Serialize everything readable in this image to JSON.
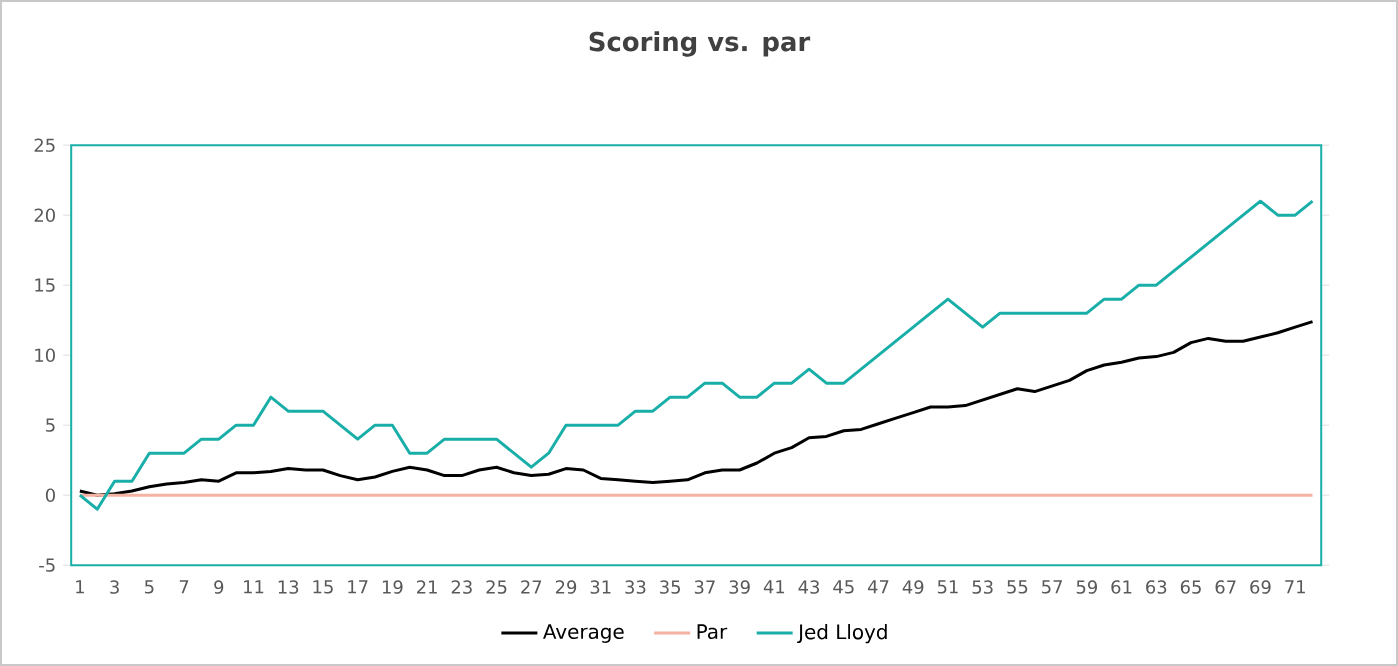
{
  "chart_data": {
    "type": "line",
    "title": "Scoring vs. par",
    "categories": [
      "1",
      null,
      "3",
      null,
      "5",
      null,
      "7",
      null,
      "9",
      null,
      "11",
      null,
      "13",
      null,
      "15",
      null,
      "17",
      null,
      "19",
      null,
      "21",
      null,
      "23",
      null,
      "25",
      null,
      "27",
      null,
      "29",
      null,
      "31",
      null,
      "33",
      null,
      "35",
      null,
      "37",
      null,
      "39",
      null,
      "41",
      null,
      "43",
      null,
      "45",
      null,
      "47",
      null,
      "49",
      null,
      "51",
      null,
      "53",
      null,
      "55",
      null,
      "57",
      null,
      "59",
      null,
      "61",
      null,
      "63",
      null,
      "65",
      null,
      "67",
      null,
      "69",
      null,
      "71",
      null
    ],
    "series": [
      {
        "name": "Average",
        "color": "#000000",
        "values": [
          0.3,
          0,
          0.1,
          0.3,
          0.6,
          0.8,
          0.9,
          1.1,
          1.0,
          1.6,
          1.6,
          1.7,
          1.9,
          1.8,
          1.8,
          1.4,
          1.1,
          1.3,
          1.7,
          2.0,
          1.8,
          1.4,
          1.4,
          1.8,
          2.0,
          1.6,
          1.4,
          1.5,
          1.9,
          1.8,
          1.2,
          1.1,
          1.0,
          0.9,
          1.0,
          1.1,
          1.6,
          1.8,
          1.8,
          2.3,
          3.0,
          3.4,
          4.1,
          4.2,
          4.6,
          4.7,
          5.1,
          5.5,
          5.9,
          6.3,
          6.3,
          6.4,
          6.8,
          7.2,
          7.6,
          7.4,
          7.8,
          8.2,
          8.9,
          9.3,
          9.5,
          9.8,
          9.9,
          10.2,
          10.9,
          11.2,
          11.0,
          11.0,
          11.3,
          11.6,
          12.0,
          12.4
        ]
      },
      {
        "name": "Par",
        "color": "#f4b2a2",
        "values": [
          0,
          0,
          0,
          0,
          0,
          0,
          0,
          0,
          0,
          0,
          0,
          0,
          0,
          0,
          0,
          0,
          0,
          0,
          0,
          0,
          0,
          0,
          0,
          0,
          0,
          0,
          0,
          0,
          0,
          0,
          0,
          0,
          0,
          0,
          0,
          0,
          0,
          0,
          0,
          0,
          0,
          0,
          0,
          0,
          0,
          0,
          0,
          0,
          0,
          0,
          0,
          0,
          0,
          0,
          0,
          0,
          0,
          0,
          0,
          0,
          0,
          0,
          0,
          0,
          0,
          0,
          0,
          0,
          0,
          0,
          0,
          0
        ]
      },
      {
        "name": "Jed Lloyd",
        "color": "#1aaea8",
        "values": [
          0,
          -1,
          1,
          1,
          3,
          3,
          3,
          4,
          4,
          5,
          5,
          7,
          6,
          6,
          6,
          5,
          4,
          5,
          5,
          3,
          3,
          4,
          4,
          4,
          4,
          3,
          2,
          3,
          5,
          5,
          5,
          5,
          6,
          6,
          7,
          7,
          8,
          8,
          7,
          7,
          8,
          8,
          9,
          8,
          8,
          9,
          10,
          11,
          12,
          13,
          14,
          13,
          12,
          13,
          13,
          13,
          13,
          13,
          13,
          14,
          14,
          15,
          15,
          16,
          17,
          18,
          19,
          20,
          21,
          20,
          20,
          21
        ]
      }
    ],
    "ylim": [
      -5,
      25
    ],
    "yticks": [
      -5,
      0,
      5,
      10,
      15,
      20,
      25
    ],
    "grid": false,
    "legend": "bottom",
    "marker": "none",
    "line_style": "solid"
  }
}
